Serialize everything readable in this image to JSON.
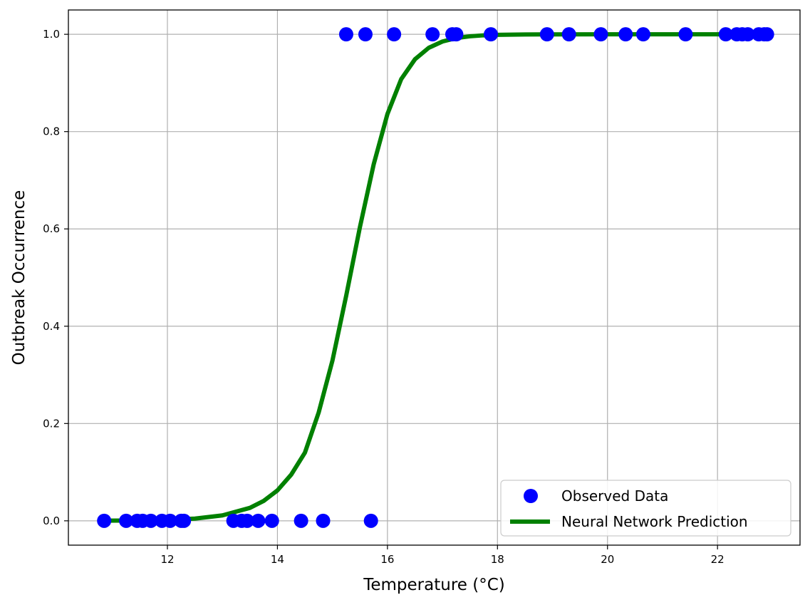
{
  "chart_data": {
    "type": "scatter",
    "title": "",
    "xlabel": "Temperature (°C)",
    "ylabel": "Outbreak Occurrence",
    "xlim": [
      10.2,
      23.5
    ],
    "ylim": [
      -0.05,
      1.05
    ],
    "x_ticks": [
      12,
      14,
      16,
      18,
      20,
      22
    ],
    "y_ticks": [
      0.0,
      0.2,
      0.4,
      0.6,
      0.8,
      1.0
    ],
    "x_tick_labels": [
      "12",
      "14",
      "16",
      "18",
      "20",
      "22"
    ],
    "y_tick_labels": [
      "0.0",
      "0.2",
      "0.4",
      "0.6",
      "0.8",
      "1.0"
    ],
    "grid": true,
    "legend_position": "bottom-right",
    "series": [
      {
        "name": "Observed Data",
        "kind": "scatter",
        "color": "#0000ff",
        "points": [
          [
            10.85,
            0
          ],
          [
            11.25,
            0
          ],
          [
            11.45,
            0
          ],
          [
            11.55,
            0
          ],
          [
            11.7,
            0
          ],
          [
            11.9,
            0
          ],
          [
            12.05,
            0
          ],
          [
            12.25,
            0
          ],
          [
            12.3,
            0
          ],
          [
            13.2,
            0
          ],
          [
            13.35,
            0
          ],
          [
            13.45,
            0
          ],
          [
            13.65,
            0
          ],
          [
            13.9,
            0
          ],
          [
            14.43,
            0
          ],
          [
            14.83,
            0
          ],
          [
            15.7,
            0
          ],
          [
            15.25,
            1
          ],
          [
            15.6,
            1
          ],
          [
            16.12,
            1
          ],
          [
            16.82,
            1
          ],
          [
            17.18,
            1
          ],
          [
            17.25,
            1
          ],
          [
            17.88,
            1
          ],
          [
            18.9,
            1
          ],
          [
            19.3,
            1
          ],
          [
            19.88,
            1
          ],
          [
            20.33,
            1
          ],
          [
            20.65,
            1
          ],
          [
            21.42,
            1
          ],
          [
            22.15,
            1
          ],
          [
            22.35,
            1
          ],
          [
            22.45,
            1
          ],
          [
            22.55,
            1
          ],
          [
            22.75,
            1
          ],
          [
            22.85,
            1
          ],
          [
            22.9,
            1
          ]
        ]
      },
      {
        "name": "Neural Network Prediction",
        "kind": "line",
        "color": "#008000",
        "x": [
          10.85,
          11.5,
          12.0,
          12.5,
          13.0,
          13.5,
          13.75,
          14.0,
          14.25,
          14.5,
          14.75,
          15.0,
          15.25,
          15.5,
          15.75,
          16.0,
          16.25,
          16.5,
          16.75,
          17.0,
          17.25,
          17.5,
          17.75,
          18.0,
          18.5,
          19.0,
          20.0,
          21.0,
          22.0,
          22.9
        ],
        "y": [
          0.0003,
          0.0008,
          0.0019,
          0.0046,
          0.0111,
          0.0266,
          0.0409,
          0.0625,
          0.0948,
          0.1402,
          0.2227,
          0.3294,
          0.4626,
          0.6039,
          0.7328,
          0.8362,
          0.9078,
          0.9486,
          0.9722,
          0.9852,
          0.9922,
          0.9959,
          0.9979,
          0.9989,
          0.9997,
          0.99992,
          0.99999,
          1.0,
          1.0,
          1.0
        ]
      }
    ]
  }
}
